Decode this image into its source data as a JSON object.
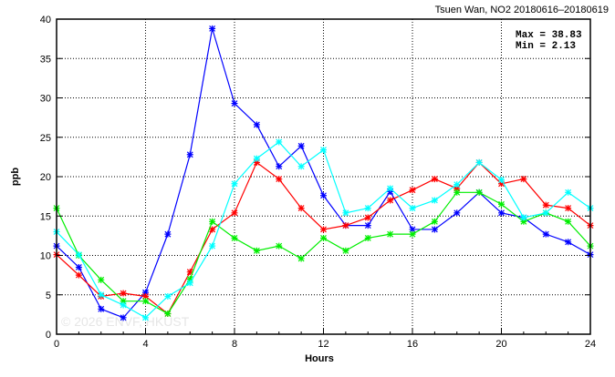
{
  "chart_data": {
    "type": "line",
    "title": "Tsuen Wan, NO2 20180616–20180619",
    "xlabel": "Hours",
    "ylabel": "ppb",
    "xlim": [
      0,
      24
    ],
    "ylim": [
      0,
      40
    ],
    "xticks": [
      0,
      4,
      8,
      12,
      16,
      20,
      24
    ],
    "yticks": [
      0,
      5,
      10,
      15,
      20,
      25,
      30,
      35,
      40
    ],
    "grid": true,
    "stats": {
      "max_label": "Max = 38.83",
      "min_label": "Min =  2.13"
    },
    "watermark": "© 2026  ENVF, HKUST",
    "x": [
      0,
      1,
      2,
      3,
      4,
      5,
      6,
      7,
      8,
      9,
      10,
      11,
      12,
      13,
      14,
      15,
      16,
      17,
      18,
      19,
      20,
      21,
      22,
      23,
      24
    ],
    "series": [
      {
        "name": "series-blue",
        "color": "#0000ff",
        "values": [
          11.2,
          8.5,
          3.2,
          2.1,
          5.3,
          12.7,
          22.8,
          38.8,
          29.3,
          26.6,
          21.3,
          23.9,
          17.6,
          13.8,
          13.8,
          18.1,
          13.3,
          13.3,
          15.4,
          18.0,
          15.4,
          14.8,
          12.7,
          11.7,
          10.1
        ]
      },
      {
        "name": "series-red",
        "color": "#ff0000",
        "values": [
          10.1,
          7.5,
          4.8,
          5.2,
          4.8,
          2.6,
          7.9,
          13.3,
          15.4,
          21.8,
          19.7,
          16.0,
          13.3,
          13.8,
          14.8,
          17.0,
          18.3,
          19.7,
          18.5,
          21.8,
          19.1,
          19.7,
          16.4,
          16.0,
          13.8
        ]
      },
      {
        "name": "series-green",
        "color": "#00ee00",
        "values": [
          16.0,
          10.0,
          6.9,
          4.2,
          4.2,
          2.6,
          7.0,
          14.3,
          12.2,
          10.6,
          11.2,
          9.6,
          12.2,
          10.6,
          12.2,
          12.7,
          12.7,
          14.3,
          18.0,
          18.0,
          16.5,
          14.3,
          15.4,
          14.3,
          11.2
        ]
      },
      {
        "name": "series-cyan",
        "color": "#00ffff",
        "values": [
          13.0,
          10.1,
          5.0,
          3.7,
          2.1,
          4.8,
          6.5,
          11.2,
          19.1,
          22.3,
          24.4,
          21.3,
          23.4,
          15.4,
          16.0,
          18.5,
          16.0,
          17.0,
          19.0,
          21.8,
          19.6,
          14.8,
          15.4,
          18.0,
          16.0
        ]
      }
    ]
  }
}
